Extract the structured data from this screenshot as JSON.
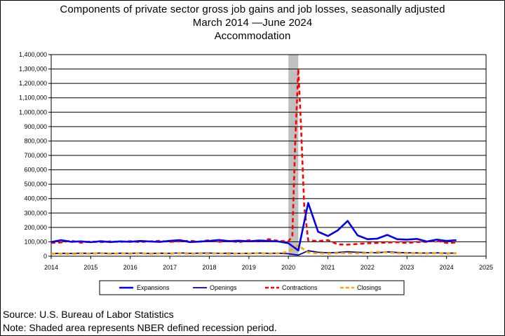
{
  "chart_data": {
    "type": "line",
    "title_lines": [
      "Components of private sector gross job gains and job losses, seasonally adjusted",
      "March 2014 —June 2024",
      "Accommodation"
    ],
    "xlabel": "",
    "ylabel": "",
    "xlim": [
      2014,
      2025
    ],
    "ylim": [
      0,
      1400000
    ],
    "x_ticks": [
      2014,
      2015,
      2016,
      2017,
      2018,
      2019,
      2020,
      2021,
      2022,
      2023,
      2024,
      2025
    ],
    "y_ticks": [
      {
        "value": 0,
        "label": "0"
      },
      {
        "value": 100000,
        "label": "100,000"
      },
      {
        "value": 200000,
        "label": "200,000"
      },
      {
        "value": 300000,
        "label": "300,000"
      },
      {
        "value": 400000,
        "label": "400,000"
      },
      {
        "value": 500000,
        "label": "500,000"
      },
      {
        "value": 600000,
        "label": "600,000"
      },
      {
        "value": 700000,
        "label": "700,000"
      },
      {
        "value": 800000,
        "label": "800,000"
      },
      {
        "value": 900000,
        "label": "900,000"
      },
      {
        "value": 1000000,
        "label": "1,000,000"
      },
      {
        "value": 1100000,
        "label": "1,100,000"
      },
      {
        "value": 1200000,
        "label": "1,200,000"
      },
      {
        "value": 1300000,
        "label": "1,300,000"
      },
      {
        "value": 1400000,
        "label": "1,400,000"
      }
    ],
    "grid": "horizontal",
    "recession_shading": {
      "start": 2020.0,
      "end": 2020.25,
      "color": "#c0c0c0"
    },
    "legend_position": "bottom",
    "series": [
      {
        "name": "Expansions",
        "color": "#0000ee",
        "style": "solid",
        "width": 2.6,
        "x": [
          2014.0,
          2014.25,
          2014.5,
          2014.75,
          2015.0,
          2015.25,
          2015.5,
          2015.75,
          2016.0,
          2016.25,
          2016.5,
          2016.75,
          2017.0,
          2017.25,
          2017.5,
          2017.75,
          2018.0,
          2018.25,
          2018.5,
          2018.75,
          2019.0,
          2019.25,
          2019.5,
          2019.75,
          2020.0,
          2020.25,
          2020.5,
          2020.75,
          2021.0,
          2021.25,
          2021.5,
          2021.75,
          2022.0,
          2022.25,
          2022.5,
          2022.75,
          2023.0,
          2023.25,
          2023.5,
          2023.75,
          2024.0,
          2024.25
        ],
        "y": [
          98000,
          112000,
          100000,
          103000,
          97000,
          104000,
          98000,
          103000,
          100000,
          106000,
          102000,
          99000,
          107000,
          112000,
          98000,
          101000,
          106000,
          113000,
          104000,
          108000,
          103000,
          109000,
          106000,
          102000,
          90000,
          40000,
          370000,
          170000,
          140000,
          180000,
          245000,
          145000,
          118000,
          122000,
          148000,
          118000,
          115000,
          120000,
          102000,
          115000,
          106000,
          112000
        ]
      },
      {
        "name": "Openings",
        "color": "#0000a0",
        "style": "solid",
        "width": 1.8,
        "x": [
          2014.0,
          2014.25,
          2014.5,
          2014.75,
          2015.0,
          2015.25,
          2015.5,
          2015.75,
          2016.0,
          2016.25,
          2016.5,
          2016.75,
          2017.0,
          2017.25,
          2017.5,
          2017.75,
          2018.0,
          2018.25,
          2018.5,
          2018.75,
          2019.0,
          2019.25,
          2019.5,
          2019.75,
          2020.0,
          2020.25,
          2020.5,
          2020.75,
          2021.0,
          2021.25,
          2021.5,
          2021.75,
          2022.0,
          2022.25,
          2022.5,
          2022.75,
          2023.0,
          2023.25,
          2023.5,
          2023.75,
          2024.0,
          2024.25
        ],
        "y": [
          18000,
          20000,
          19000,
          21000,
          20000,
          22000,
          19000,
          21000,
          20000,
          22000,
          19000,
          21000,
          20000,
          23000,
          20000,
          21000,
          22000,
          20000,
          21000,
          19000,
          20000,
          22000,
          20000,
          21000,
          17000,
          8000,
          38000,
          27000,
          24000,
          26000,
          31000,
          27000,
          25000,
          24000,
          30000,
          26000,
          24000,
          23000,
          22000,
          24000,
          21000,
          22000
        ]
      },
      {
        "name": "Contractions",
        "color": "#ff0000",
        "style": "dashed",
        "width": 2.6,
        "x": [
          2014.0,
          2014.25,
          2014.5,
          2014.75,
          2015.0,
          2015.25,
          2015.5,
          2015.75,
          2016.0,
          2016.25,
          2016.5,
          2016.75,
          2017.0,
          2017.25,
          2017.5,
          2017.75,
          2018.0,
          2018.25,
          2018.5,
          2018.75,
          2019.0,
          2019.25,
          2019.5,
          2019.75,
          2020.0,
          2020.1,
          2020.17,
          2020.25,
          2020.32,
          2020.4,
          2020.5,
          2020.75,
          2021.0,
          2021.25,
          2021.5,
          2021.75,
          2022.0,
          2022.25,
          2022.5,
          2022.75,
          2023.0,
          2023.25,
          2023.5,
          2023.75,
          2024.0,
          2024.25
        ],
        "y": [
          92000,
          96000,
          108000,
          94000,
          102000,
          97000,
          103000,
          99000,
          104000,
          98000,
          103000,
          106000,
          100000,
          103000,
          107000,
          101000,
          112000,
          100000,
          106000,
          97000,
          111000,
          100000,
          118000,
          106000,
          103000,
          140000,
          780000,
          1300000,
          900000,
          350000,
          110000,
          105000,
          112000,
          82000,
          80000,
          85000,
          90000,
          92000,
          95000,
          97000,
          92000,
          98000,
          100000,
          108000,
          92000,
          95000
        ]
      },
      {
        "name": "Closings",
        "color": "#ffa500",
        "style": "dashed",
        "width": 2.6,
        "x": [
          2014.0,
          2014.25,
          2014.5,
          2014.75,
          2015.0,
          2015.25,
          2015.5,
          2015.75,
          2016.0,
          2016.25,
          2016.5,
          2016.75,
          2017.0,
          2017.25,
          2017.5,
          2017.75,
          2018.0,
          2018.25,
          2018.5,
          2018.75,
          2019.0,
          2019.25,
          2019.5,
          2019.75,
          2020.0,
          2020.25,
          2020.5,
          2020.75,
          2021.0,
          2021.25,
          2021.5,
          2021.75,
          2022.0,
          2022.25,
          2022.5,
          2022.75,
          2023.0,
          2023.25,
          2023.5,
          2023.75,
          2024.0,
          2024.25
        ],
        "y": [
          16000,
          18000,
          14000,
          19000,
          17000,
          20000,
          16000,
          19000,
          17000,
          20000,
          16000,
          19000,
          17000,
          21000,
          16000,
          19000,
          17000,
          20000,
          16000,
          19000,
          18000,
          21000,
          17000,
          20000,
          30000,
          75000,
          25000,
          20000,
          18000,
          22000,
          21000,
          20000,
          22000,
          30000,
          26000,
          21000,
          20000,
          22000,
          19000,
          21000,
          18000,
          20000
        ]
      }
    ]
  },
  "footer": {
    "source": "Source: U.S. Bureau of Labor Statistics",
    "note": "Note: Shaded area represents NBER defined recession period."
  }
}
